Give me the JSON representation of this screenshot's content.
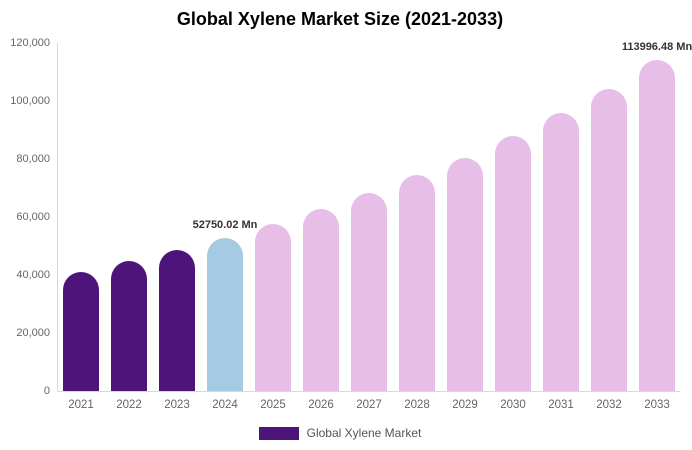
{
  "chart_data": {
    "type": "bar",
    "title": "Global Xylene Market Size (2021-2033)",
    "categories": [
      "2021",
      "2022",
      "2023",
      "2024",
      "2025",
      "2026",
      "2027",
      "2028",
      "2029",
      "2030",
      "2031",
      "2032",
      "2033"
    ],
    "values": [
      41000,
      44800,
      48500,
      52750.02,
      57600,
      62800,
      68300,
      74500,
      80300,
      87900,
      95900,
      104100,
      113996.48
    ],
    "bar_colors": [
      "#4D147A",
      "#4D147A",
      "#4D147A",
      "#A4CBE2",
      "#E6BEE8",
      "#E6BEE8",
      "#E6BEE8",
      "#E6BEE8",
      "#E6BEE8",
      "#E6BEE8",
      "#E6BEE8",
      "#E6BEE8",
      "#E6BEE8"
    ],
    "annotations": [
      {
        "category": "2024",
        "text": "52750.02 Mn"
      },
      {
        "category": "2033",
        "text": "113996.48 Mn"
      }
    ],
    "xlabel": "",
    "ylabel": "",
    "ylim": [
      0,
      120000
    ],
    "ytick_interval": 20000,
    "ytick_labels": [
      "0",
      "20,000",
      "40,000",
      "60,000",
      "80,000",
      "100,000",
      "120,000"
    ],
    "grid": false,
    "legend": {
      "position": "bottom",
      "label": "Global Xylene Market",
      "swatch_color": "#4D147A"
    },
    "colors": {
      "historical_bar": "#4D147A",
      "base_year_bar": "#A4CBE2",
      "forecast_bar": "#E6BEE8",
      "axis_line": "#D9D9D9",
      "tick_text": "#666666",
      "annotation_text": "#333333",
      "title_text": "#000000",
      "legend_text": "#555555"
    }
  }
}
